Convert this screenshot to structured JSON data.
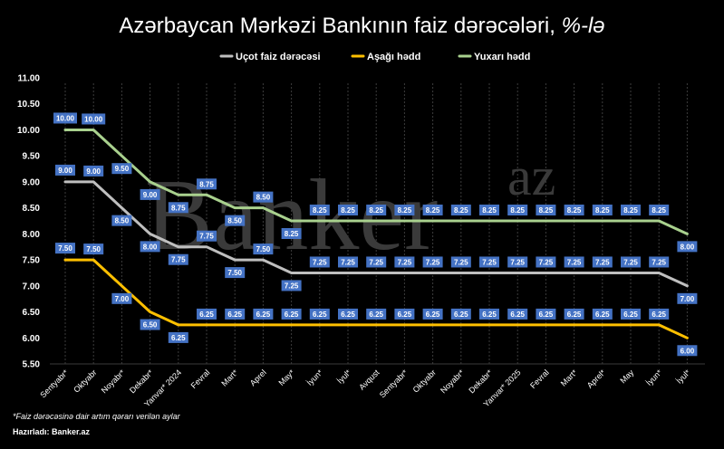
{
  "chart_data": {
    "type": "line",
    "title_main": "Azərbaycan Mərkəzi Bankının faiz dərəcələri, ",
    "title_suffix": "%-lə",
    "categories": [
      "Sentyabr*",
      "Oktyabr",
      "Noyabr*",
      "Dekabr*",
      "Yanvar* 2024",
      "Fevral",
      "Mart*",
      "Aprel",
      "May*",
      "İyun*",
      "İyul*",
      "Avqust",
      "Sentyabr*",
      "Oktyabr",
      "Noyabr*",
      "Dekabr*",
      "Yanvar* 2025",
      "Fevral",
      "Mart*",
      "Aprel*",
      "May",
      "İyun*",
      "İyul*"
    ],
    "series": [
      {
        "name": "Uçot faiz dərəcəsi",
        "color": "#bfbfbf",
        "values": [
          9.0,
          9.0,
          8.5,
          8.0,
          7.75,
          7.75,
          7.5,
          7.5,
          7.25,
          7.25,
          7.25,
          7.25,
          7.25,
          7.25,
          7.25,
          7.25,
          7.25,
          7.25,
          7.25,
          7.25,
          7.25,
          7.25,
          7.0
        ]
      },
      {
        "name": "Aşağı hədd",
        "color": "#ffc000",
        "values": [
          7.5,
          7.5,
          7.0,
          6.5,
          6.25,
          6.25,
          6.25,
          6.25,
          6.25,
          6.25,
          6.25,
          6.25,
          6.25,
          6.25,
          6.25,
          6.25,
          6.25,
          6.25,
          6.25,
          6.25,
          6.25,
          6.25,
          6.0
        ]
      },
      {
        "name": "Yuxarı hədd",
        "color": "#a9d18e",
        "values": [
          10.0,
          10.0,
          9.5,
          9.0,
          8.75,
          8.75,
          8.5,
          8.5,
          8.25,
          8.25,
          8.25,
          8.25,
          8.25,
          8.25,
          8.25,
          8.25,
          8.25,
          8.25,
          8.25,
          8.25,
          8.25,
          8.25,
          8.0
        ]
      }
    ],
    "ylim": [
      5.5,
      11.0
    ],
    "yticks": [
      "5.50",
      "6.00",
      "6.50",
      "7.00",
      "7.50",
      "8.00",
      "8.50",
      "9.00",
      "9.50",
      "10.00",
      "10.50",
      "11.00"
    ],
    "label_color": "#4472c4",
    "footnote": "*Faiz dərəcəsinə dair artım qərarı verilən aylar",
    "credit": "Hazırladı: Banker.az",
    "watermark_main": "Banker",
    "watermark_sup": "az",
    "grid": "vertical"
  }
}
